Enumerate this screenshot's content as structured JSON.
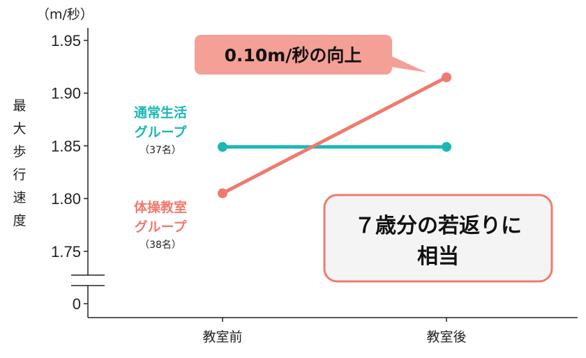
{
  "chart_data": {
    "type": "line",
    "unit_label": "（m/秒）",
    "ylabel": "最大歩行速度",
    "categories": [
      "教室前",
      "教室後"
    ],
    "y_ticks": [
      "1.95",
      "1.90",
      "1.85",
      "1.80",
      "1.75",
      "0"
    ],
    "ylim": [
      1.725,
      1.96
    ],
    "axis_break": true,
    "grid": false,
    "series": [
      {
        "name": "通常生活グループ",
        "name_line1": "通常生活",
        "name_line2": "グループ",
        "count": "（37名）",
        "values": [
          1.849,
          1.849
        ],
        "color": "#1bb7b7"
      },
      {
        "name": "体操教室グループ",
        "name_line1": "体操教室",
        "name_line2": "グループ",
        "count": "（38名）",
        "values": [
          1.805,
          1.915
        ],
        "color": "#f07a6e"
      }
    ],
    "annotations": {
      "callout": "0.10m/秒の向上",
      "box_line1": "７歳分の若返りに",
      "box_line2": "相当"
    }
  }
}
